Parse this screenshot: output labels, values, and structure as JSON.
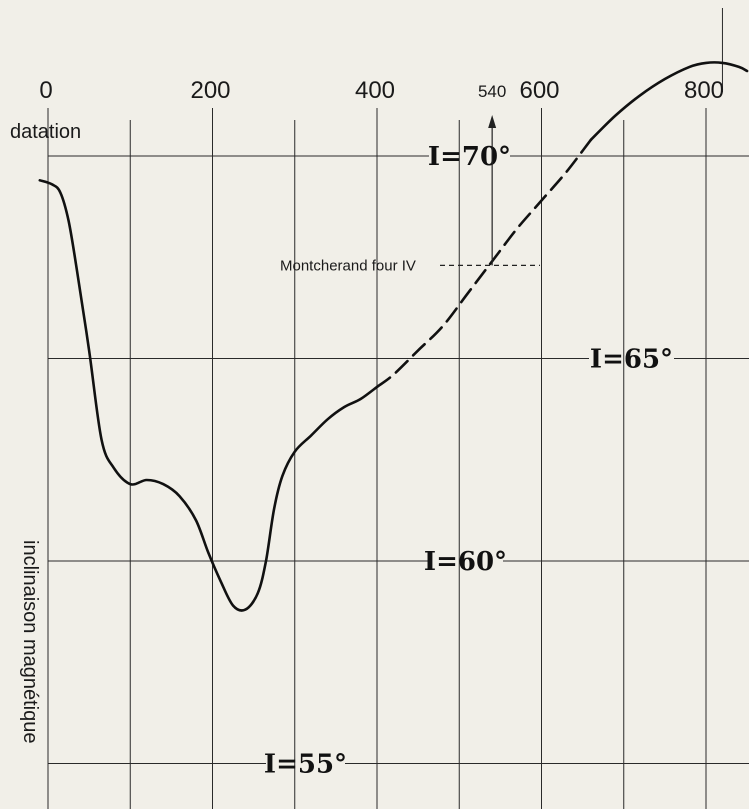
{
  "chart_data": {
    "type": "line",
    "title": "",
    "xlabel": "datation",
    "ylabel": "inclinaison magnétique",
    "x_ticks": [
      {
        "value": 0,
        "label": "0"
      },
      {
        "value": 200,
        "label": "200"
      },
      {
        "value": 400,
        "label": "400"
      },
      {
        "value": 600,
        "label": "600"
      },
      {
        "value": 800,
        "label": "800"
      }
    ],
    "y_levels": [
      {
        "value": 70,
        "label": "I=70°"
      },
      {
        "value": 65,
        "label": "I=65°"
      },
      {
        "value": 60,
        "label": "I=60°"
      },
      {
        "value": 55,
        "label": "I=55°"
      }
    ],
    "xlim": [
      -20,
      860
    ],
    "ylim": [
      54.4,
      71.5
    ],
    "grid": true,
    "series": [
      {
        "style": "solid",
        "x": [
          -10,
          5,
          15,
          25,
          35,
          50,
          65,
          80,
          100,
          120,
          140,
          160,
          180,
          195,
          210,
          225,
          240,
          255,
          265,
          275,
          285,
          300,
          320,
          340,
          360,
          380,
          400
        ],
        "y": [
          69.4,
          69.3,
          69.1,
          68.4,
          67.2,
          65.2,
          63.0,
          62.3,
          61.9,
          62.0,
          61.9,
          61.6,
          61.0,
          60.2,
          59.5,
          58.9,
          58.8,
          59.2,
          60.0,
          61.3,
          62.1,
          62.7,
          63.1,
          63.5,
          63.8,
          64.0,
          64.3
        ]
      },
      {
        "style": "dashed",
        "x": [
          400,
          420,
          450,
          480,
          510,
          540,
          570,
          600,
          630,
          660
        ],
        "y": [
          64.3,
          64.6,
          65.2,
          65.8,
          66.6,
          67.4,
          68.2,
          68.9,
          69.6,
          70.4
        ]
      },
      {
        "style": "solid",
        "x": [
          660,
          690,
          720,
          750,
          780,
          800,
          820,
          840,
          850
        ],
        "y": [
          70.4,
          71.0,
          71.5,
          71.9,
          72.2,
          72.3,
          72.3,
          72.2,
          72.1
        ]
      }
    ],
    "annotations": [
      {
        "label": "Montcherand four IV",
        "x": 540,
        "y": 67.3
      },
      {
        "label": "540",
        "x": 540
      }
    ]
  }
}
